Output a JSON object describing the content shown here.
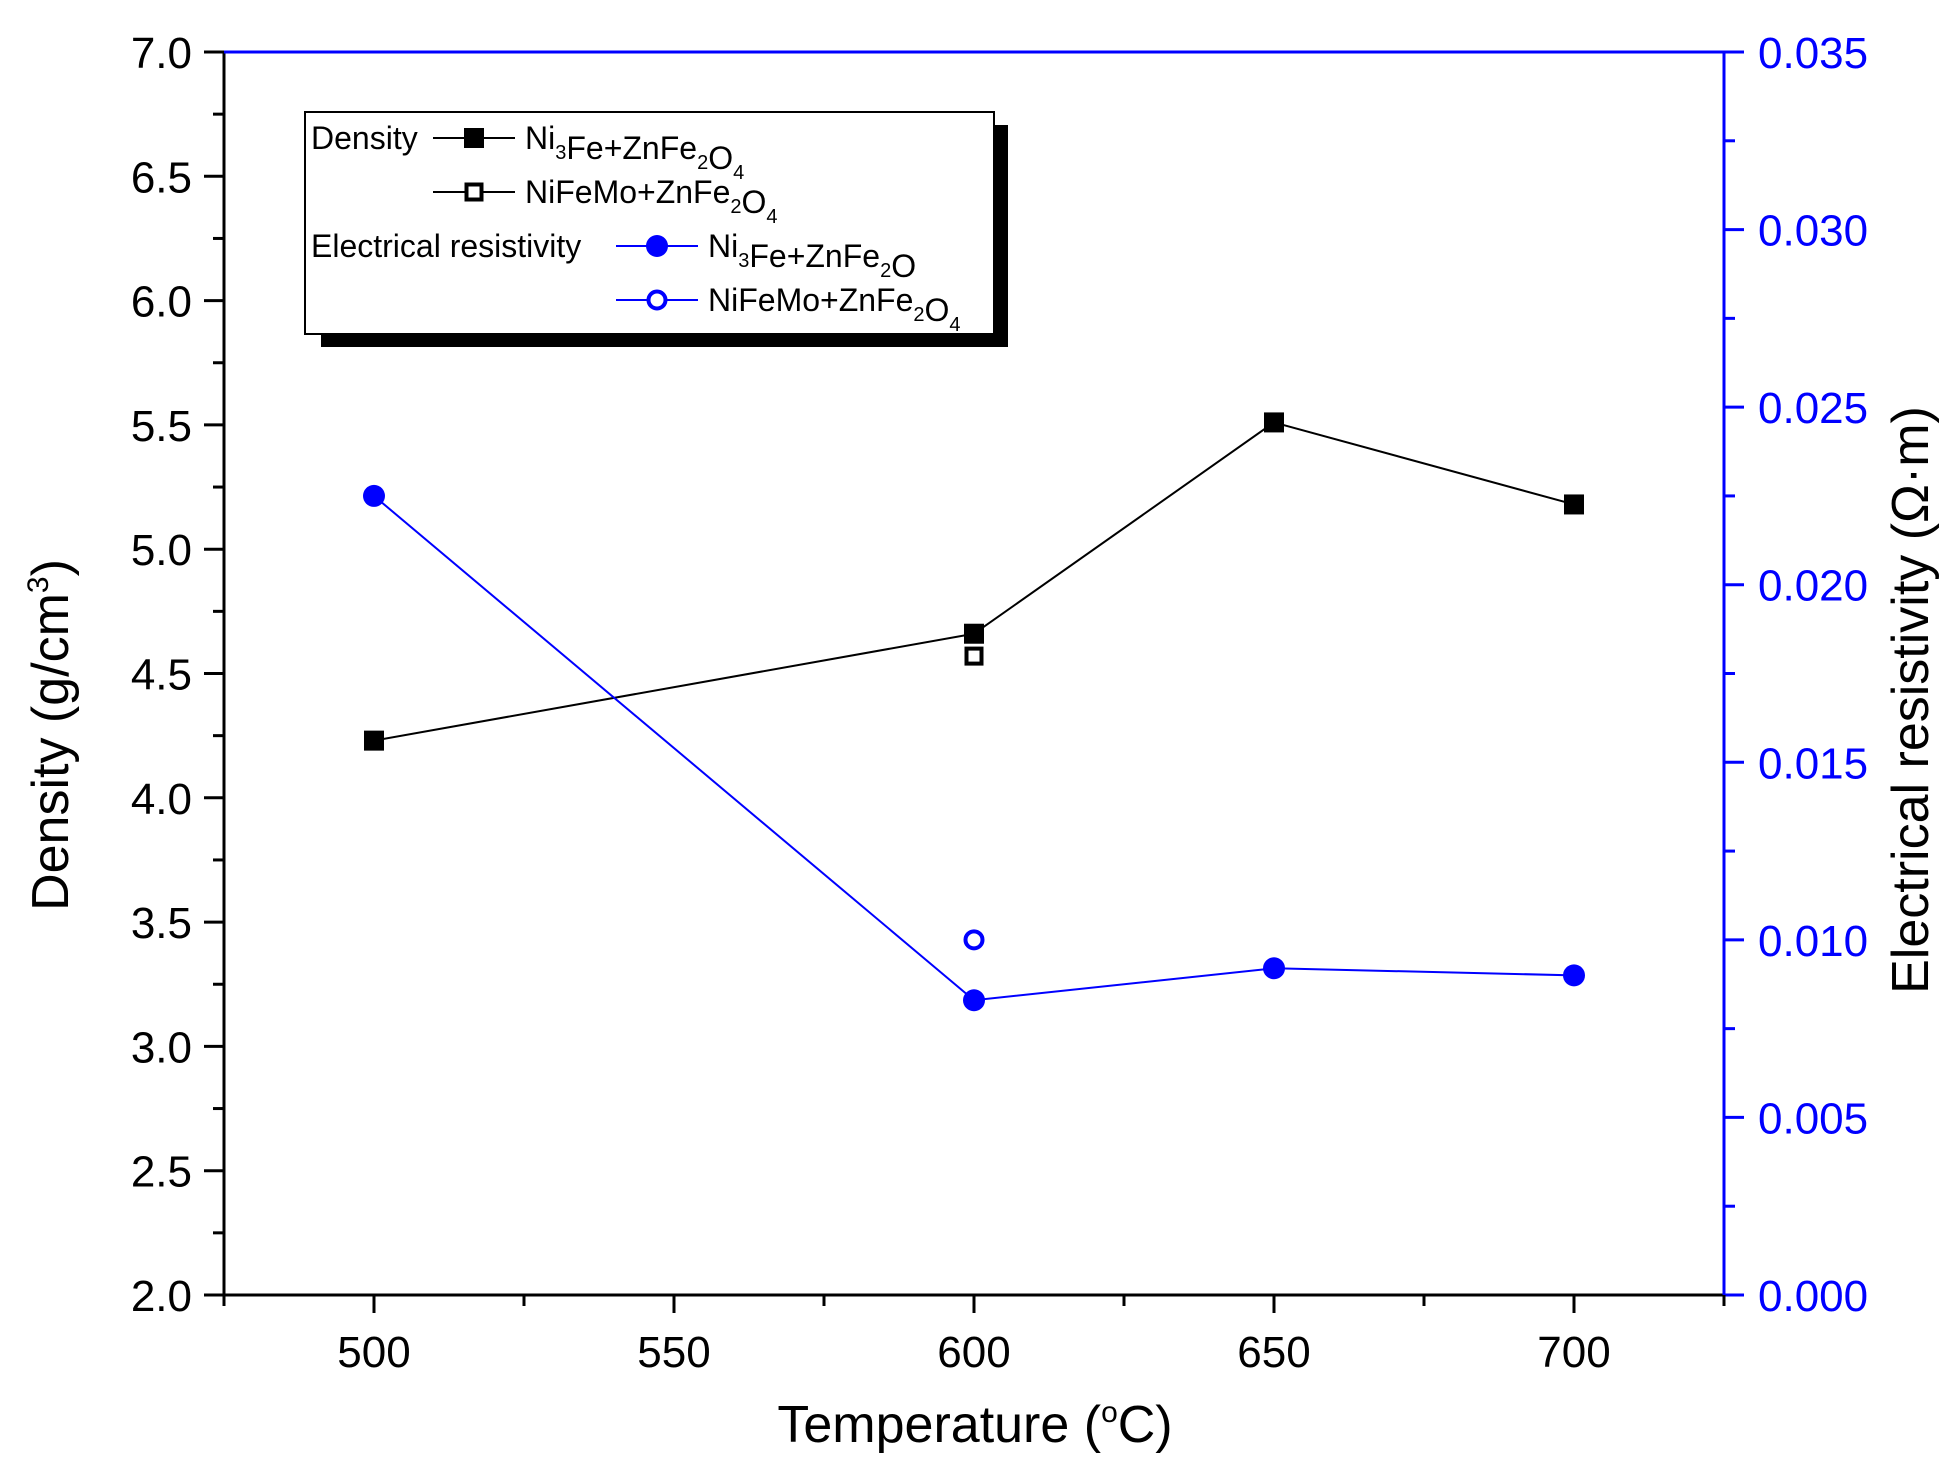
{
  "chart_data": {
    "type": "line",
    "x_axis": {
      "label_main": "Temperature (",
      "label_degree": "o",
      "label_unit": "C)",
      "range": [
        475,
        725
      ],
      "major_ticks": [
        500,
        550,
        600,
        650,
        700
      ],
      "tick_labels": [
        "500",
        "550",
        "600",
        "650",
        "700"
      ],
      "minor_step": 25
    },
    "y_left": {
      "label_main": "Density (g/cm",
      "label_sup": "3",
      "label_close": ")",
      "range": [
        2.0,
        7.0
      ],
      "ticks": [
        2.0,
        2.5,
        3.0,
        3.5,
        4.0,
        4.5,
        5.0,
        5.5,
        6.0,
        6.5,
        7.0
      ],
      "tick_labels": [
        "2.0",
        "2.5",
        "3.0",
        "3.5",
        "4.0",
        "4.5",
        "5.0",
        "5.5",
        "6.0",
        "6.5",
        "7.0"
      ],
      "color": "#000000"
    },
    "y_right": {
      "label": "Electrical resistivity (Ω·m)",
      "range": [
        0.0,
        0.035
      ],
      "ticks": [
        0.0,
        0.005,
        0.01,
        0.015,
        0.02,
        0.025,
        0.03,
        0.035
      ],
      "tick_labels": [
        "0.000",
        "0.005",
        "0.010",
        "0.015",
        "0.020",
        "0.025",
        "0.030",
        "0.035"
      ],
      "color": "#0000ff"
    },
    "series": [
      {
        "id": "density-ni3fe",
        "name": "Ni3Fe+ZnFe2O4",
        "axis": "left",
        "marker": "square-filled",
        "line": true,
        "color": "#000000",
        "x": [
          500,
          600,
          650,
          700
        ],
        "y": [
          4.23,
          4.66,
          5.51,
          5.18
        ]
      },
      {
        "id": "density-nifemo",
        "name": "NiFeMo+ZnFe2O4",
        "axis": "left",
        "marker": "square-open",
        "line": false,
        "color": "#000000",
        "x": [
          600
        ],
        "y": [
          4.57
        ]
      },
      {
        "id": "resistivity-ni3fe",
        "name": "Ni3Fe+ZnFe2O",
        "axis": "right",
        "marker": "circle-filled",
        "line": true,
        "color": "#0000ff",
        "x": [
          500,
          600,
          650,
          700
        ],
        "y": [
          0.0225,
          0.0083,
          0.0092,
          0.009
        ]
      },
      {
        "id": "resistivity-nifemo",
        "name": "NiFeMo+ZnFe2O4",
        "axis": "right",
        "marker": "circle-open",
        "line": false,
        "color": "#0000ff",
        "x": [
          600
        ],
        "y": [
          0.01
        ]
      }
    ],
    "legend": {
      "placement": "top-left",
      "groups": {
        "density": "Density",
        "resistivity": "Electrical resistivity"
      },
      "entries": [
        {
          "series": "density-ni3fe",
          "group_label": "density",
          "parts": [
            [
              "Ni",
              ""
            ],
            [
              "3",
              "sub"
            ],
            [
              "Fe+ZnFe",
              ""
            ],
            [
              "2",
              "sub"
            ],
            [
              "O",
              ""
            ],
            [
              "4",
              "sub"
            ]
          ]
        },
        {
          "series": "density-nifemo",
          "group_label": null,
          "parts": [
            [
              "NiFeMo+ZnFe",
              ""
            ],
            [
              "2",
              "sub"
            ],
            [
              "O",
              ""
            ],
            [
              "4",
              "sub"
            ]
          ]
        },
        {
          "series": "resistivity-ni3fe",
          "group_label": "resistivity",
          "parts": [
            [
              "Ni",
              ""
            ],
            [
              "3",
              "sub"
            ],
            [
              "Fe+ZnFe",
              ""
            ],
            [
              "2",
              "sub"
            ],
            [
              "O",
              ""
            ]
          ]
        },
        {
          "series": "resistivity-nifemo",
          "group_label": null,
          "parts": [
            [
              "NiFeMo+ZnFe",
              ""
            ],
            [
              "2",
              "sub"
            ],
            [
              "O",
              ""
            ],
            [
              "4",
              "sub"
            ]
          ]
        }
      ]
    }
  }
}
